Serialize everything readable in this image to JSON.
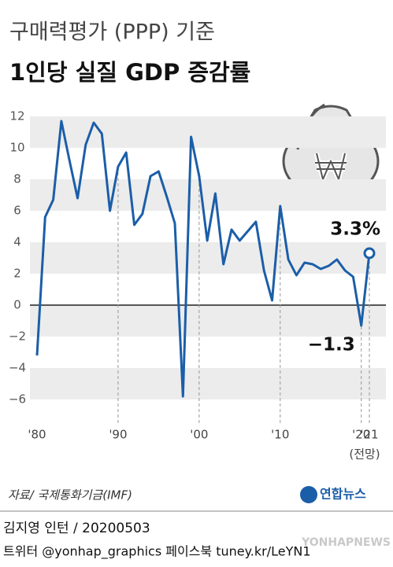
{
  "chart_data": {
    "type": "line",
    "subtitle": "구매력평가 (PPP) 기준",
    "title": "1인당 실질 GDP 증감률",
    "x": [
      1980,
      1981,
      1982,
      1983,
      1984,
      1985,
      1986,
      1987,
      1988,
      1989,
      1990,
      1991,
      1992,
      1993,
      1994,
      1995,
      1996,
      1997,
      1998,
      1999,
      2000,
      2001,
      2002,
      2003,
      2004,
      2005,
      2006,
      2007,
      2008,
      2009,
      2010,
      2011,
      2012,
      2013,
      2014,
      2015,
      2016,
      2017,
      2018,
      2019,
      2020,
      2021
    ],
    "series": [
      {
        "color": "#1b5ea8",
        "values": [
          -3.2,
          5.6,
          6.7,
          11.7,
          9.2,
          6.8,
          10.2,
          11.6,
          10.9,
          6.0,
          8.8,
          9.7,
          5.1,
          5.8,
          8.2,
          8.5,
          6.9,
          5.2,
          -5.8,
          10.7,
          8.2,
          4.1,
          7.1,
          2.6,
          4.8,
          4.1,
          4.7,
          5.3,
          2.2,
          0.3,
          6.3,
          2.9,
          1.9,
          2.7,
          2.6,
          2.3,
          2.5,
          2.9,
          2.2,
          1.8,
          -1.3,
          3.3
        ],
        "value_labels": [
          null,
          null,
          null,
          null,
          null,
          null,
          null,
          null,
          null,
          null,
          null,
          null,
          null,
          null,
          null,
          null,
          null,
          null,
          null,
          null,
          null,
          null,
          null,
          null,
          null,
          null,
          null,
          null,
          null,
          null,
          null,
          null,
          null,
          null,
          null,
          null,
          null,
          null,
          null,
          null,
          "−1.3",
          "3.3%"
        ]
      }
    ],
    "xlim": [
      1980,
      2021
    ],
    "xticks": [
      {
        "value": 1980,
        "label": "'80"
      },
      {
        "value": 1990,
        "label": "'90"
      },
      {
        "value": 2000,
        "label": "'00"
      },
      {
        "value": 2010,
        "label": "'10"
      },
      {
        "value": 2020,
        "label": "'20"
      },
      {
        "value": 2021,
        "label": "'21"
      }
    ],
    "forecast_label": "(전망)",
    "ylim": [
      -6,
      12
    ],
    "yticks": [
      {
        "value": -6,
        "label": "−6"
      },
      {
        "value": -4,
        "label": "−4"
      },
      {
        "value": -2,
        "label": "−2"
      },
      0,
      2,
      4,
      6,
      8,
      10,
      12
    ],
    "source": "자료/ 국제통화기금(IMF)",
    "logo": "연합뉴스",
    "author": "김지영 인턴 / 20200503",
    "social": "트위터 @yonhap_graphics  페이스북 tuney.kr/LeYN1",
    "watermark": "YONHAPNEWS"
  }
}
